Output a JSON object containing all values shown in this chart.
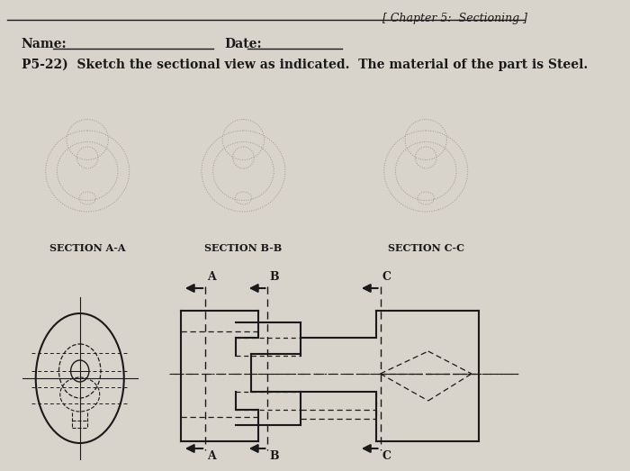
{
  "bg_color": "#d8d4cc",
  "line_color": "#1a1a1a",
  "dash_color": "#1a1a1a",
  "title_text": "[ Chapter 5:  Sectioning ]",
  "name_label": "Name:",
  "date_label": "Date:",
  "problem_text": "P5-22)  Sketch the sectional view as indicated.  The material of the part is Steel.",
  "section_aa": "SECTION A-A",
  "section_bb": "SECTION B-B",
  "section_cc": "SECTION C-C",
  "font_size_title": 9,
  "font_size_problem": 10,
  "font_size_section": 8
}
